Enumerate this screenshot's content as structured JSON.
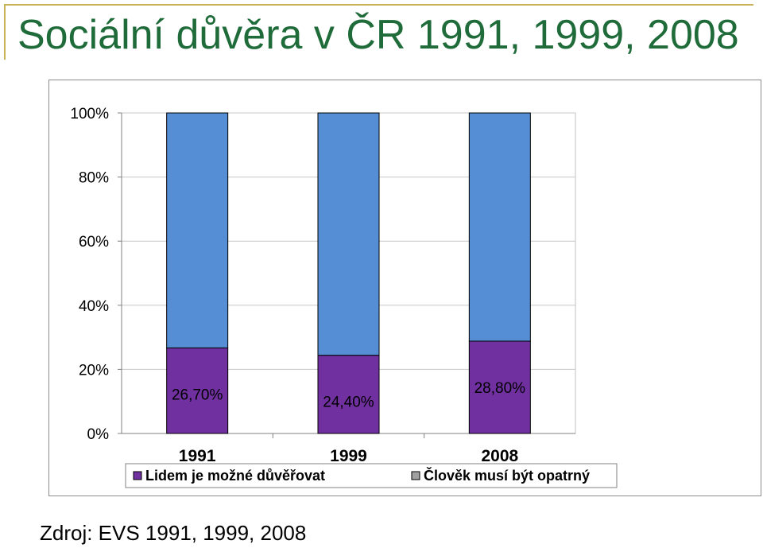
{
  "slide": {
    "title": "Sociální důvěra v ČR 1991, 1999, 2008",
    "source": "Zdroj: EVS 1991, 1999, 2008"
  },
  "colors": {
    "trust": "#7030a0",
    "careful": "#558ed5",
    "title": "#1f6b3a",
    "accent_line": "#c8b25a"
  },
  "chart_data": {
    "type": "bar",
    "stacked": true,
    "percent": true,
    "categories": [
      "1991",
      "1999",
      "2008"
    ],
    "series": [
      {
        "name": "Lidem je možné důvěřovat",
        "values": [
          26.7,
          24.4,
          28.8
        ],
        "labels": [
          "26,70%",
          "24,40%",
          "28,80%"
        ],
        "color": "#7030a0"
      },
      {
        "name": "Člověk musí být opatrný",
        "values": [
          73.3,
          75.6,
          71.2
        ],
        "color": "#558ed5"
      }
    ],
    "ylim": [
      0,
      100
    ],
    "yticks": [
      "0%",
      "20%",
      "40%",
      "60%",
      "80%",
      "100%"
    ],
    "grid": true,
    "legend": "bottom"
  }
}
